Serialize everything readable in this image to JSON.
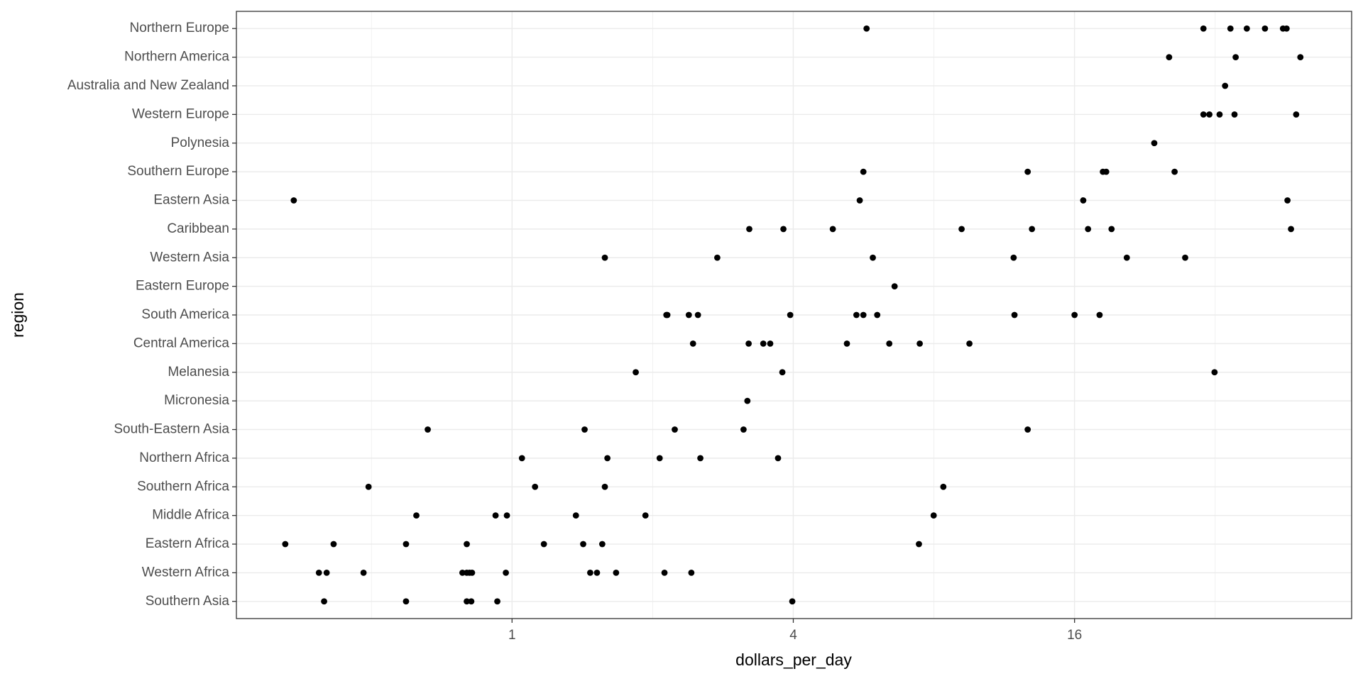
{
  "chart_data": {
    "type": "strip",
    "x_label": "dollars_per_day",
    "y_label": "region",
    "log_x": true,
    "log_base": 2,
    "grid": true,
    "color": "#000000",
    "xlim": [
      0.257,
      62.7
    ],
    "xticks": [
      1,
      4,
      16
    ],
    "xminor": [
      0.5,
      2,
      8,
      32
    ],
    "categories": [
      "Northern Europe",
      "Northern America",
      "Australia and New Zealand",
      "Western Europe",
      "Polynesia",
      "Southern Europe",
      "Eastern Asia",
      "Caribbean",
      "Western Asia",
      "Eastern Europe",
      "South America",
      "Central America",
      "Melanesia",
      "Micronesia",
      "South-Eastern Asia",
      "Northern Africa",
      "Southern Africa",
      "Middle Africa",
      "Eastern Africa",
      "Western Africa",
      "Southern Asia"
    ],
    "values": [
      [
        5.74,
        30.2,
        34.5,
        37.4,
        40.9,
        44.7,
        45.5
      ],
      [
        25.5,
        35.4,
        48.7
      ],
      [
        33.6
      ],
      [
        30.2,
        31.1,
        32.7,
        35.2,
        47.7
      ],
      [
        23.7
      ],
      [
        5.65,
        12.7,
        18.4,
        18.7,
        26.2
      ],
      [
        0.341,
        5.55,
        16.7,
        45.7
      ],
      [
        3.22,
        3.81,
        4.86,
        9.17,
        12.97,
        17.1,
        19.2,
        46.5
      ],
      [
        1.58,
        2.75,
        5.92,
        11.85,
        20.7,
        27.6
      ],
      [
        6.59
      ],
      [
        2.14,
        2.15,
        2.39,
        2.5,
        3.94,
        5.46,
        5.65,
        6.05,
        11.9,
        16.0,
        18.1
      ],
      [
        2.44,
        3.21,
        3.45,
        3.57,
        5.21,
        6.42,
        7.46,
        9.53
      ],
      [
        1.84,
        3.79,
        31.9
      ],
      [
        3.19
      ],
      [
        0.66,
        1.43,
        2.23,
        3.13,
        12.7
      ],
      [
        1.05,
        1.6,
        2.07,
        2.53,
        3.71
      ],
      [
        0.493,
        1.12,
        1.58,
        8.38
      ],
      [
        0.624,
        0.922,
        0.975,
        1.37,
        1.93,
        7.99
      ],
      [
        0.327,
        0.415,
        0.593,
        0.8,
        1.17,
        1.42,
        1.56,
        7.43
      ],
      [
        0.386,
        0.401,
        0.481,
        0.783,
        0.8,
        0.811,
        0.821,
        0.97,
        1.47,
        1.52,
        1.67,
        2.12,
        2.42
      ],
      [
        0.396,
        0.593,
        0.8,
        0.818,
        0.93,
        3.98
      ]
    ]
  }
}
